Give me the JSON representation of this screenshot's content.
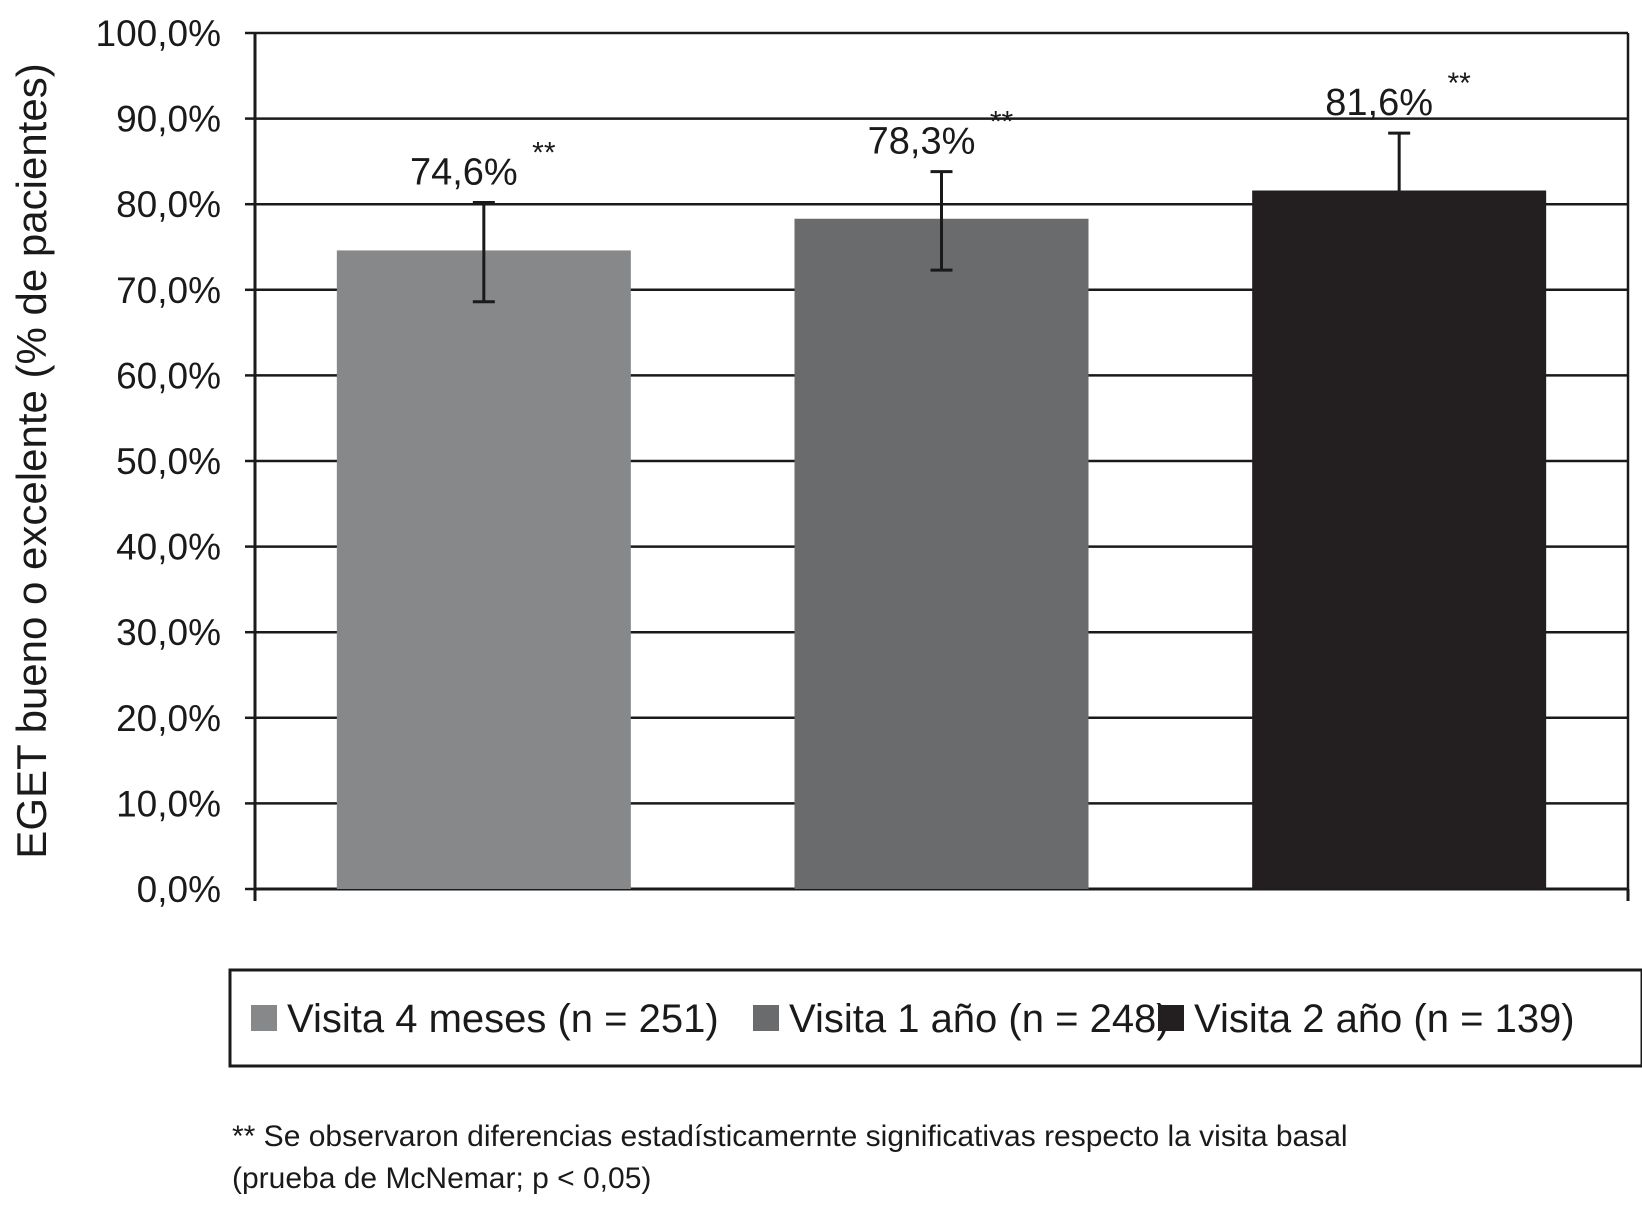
{
  "chart_data": {
    "type": "bar",
    "categories": [
      "Visita 4 meses (n = 251)",
      "Visita 1 año (n = 248)",
      "Visita 2 año (n = 139)"
    ],
    "values": [
      74.6,
      78.3,
      81.6
    ],
    "value_labels": [
      "74,6%",
      "78,3%",
      "81,6%"
    ],
    "error_upper": [
      80.2,
      83.8,
      88.3
    ],
    "error_lower": [
      68.6,
      72.3,
      81.6
    ],
    "significance_markers": [
      "**",
      "**",
      "**"
    ],
    "colors": [
      "#87888a",
      "#6a6b6d",
      "#231f20"
    ],
    "ylabel": "EGET bueno o excelente (% de pacientes)",
    "xlabel": "",
    "ylim": [
      0,
      100
    ],
    "yticks": [
      "0,0%",
      "10,0%",
      "20,0%",
      "30,0%",
      "40,0%",
      "50,0%",
      "60,0%",
      "70,0%",
      "80,0%",
      "90,0%",
      "100,0%"
    ],
    "grid": true,
    "legend_position": "bottom",
    "footnote": [
      "** Se observaron diferencias estadísticamernte significativas respecto la visita basal",
      "(prueba de McNemar; p < 0,05)"
    ]
  }
}
